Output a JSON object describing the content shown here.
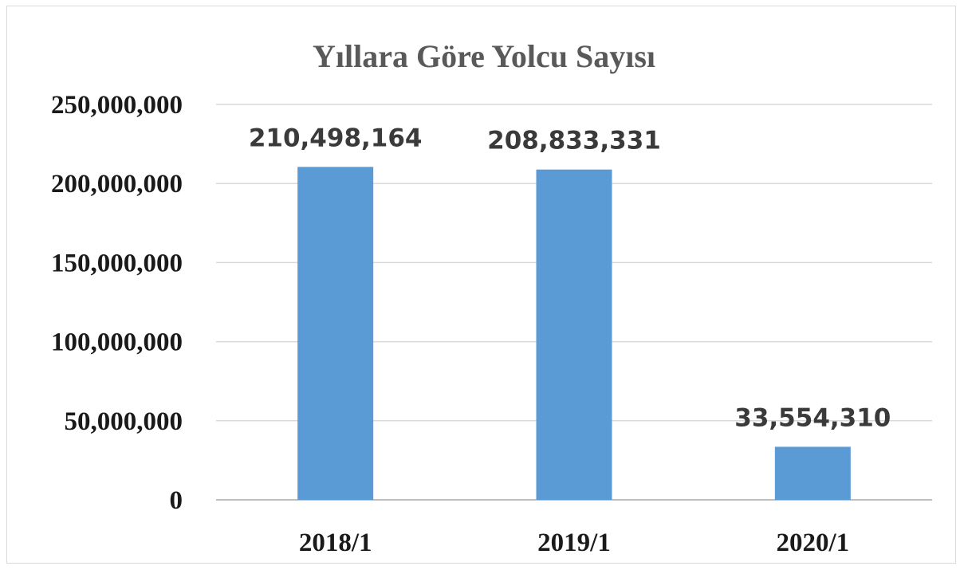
{
  "chart_data": {
    "type": "bar",
    "title": "Yıllara Göre Yolcu Sayısı",
    "categories": [
      "2018/1",
      "2019/1",
      "2020/1"
    ],
    "values": [
      210498164,
      208833331,
      33554310
    ],
    "data_labels": [
      "210,498,164",
      "208,833,331",
      "33,554,310"
    ],
    "ylim": [
      0,
      250000000
    ],
    "yticks": [
      {
        "value": 0,
        "label": "0"
      },
      {
        "value": 50000000,
        "label": "50,000,000"
      },
      {
        "value": 100000000,
        "label": "100,000,000"
      },
      {
        "value": 150000000,
        "label": "150,000,000"
      },
      {
        "value": 200000000,
        "label": "200,000,000"
      },
      {
        "value": 250000000,
        "label": "250,000,000"
      }
    ],
    "grid": true,
    "legend": "none",
    "bar_color": "#5b9bd5"
  }
}
